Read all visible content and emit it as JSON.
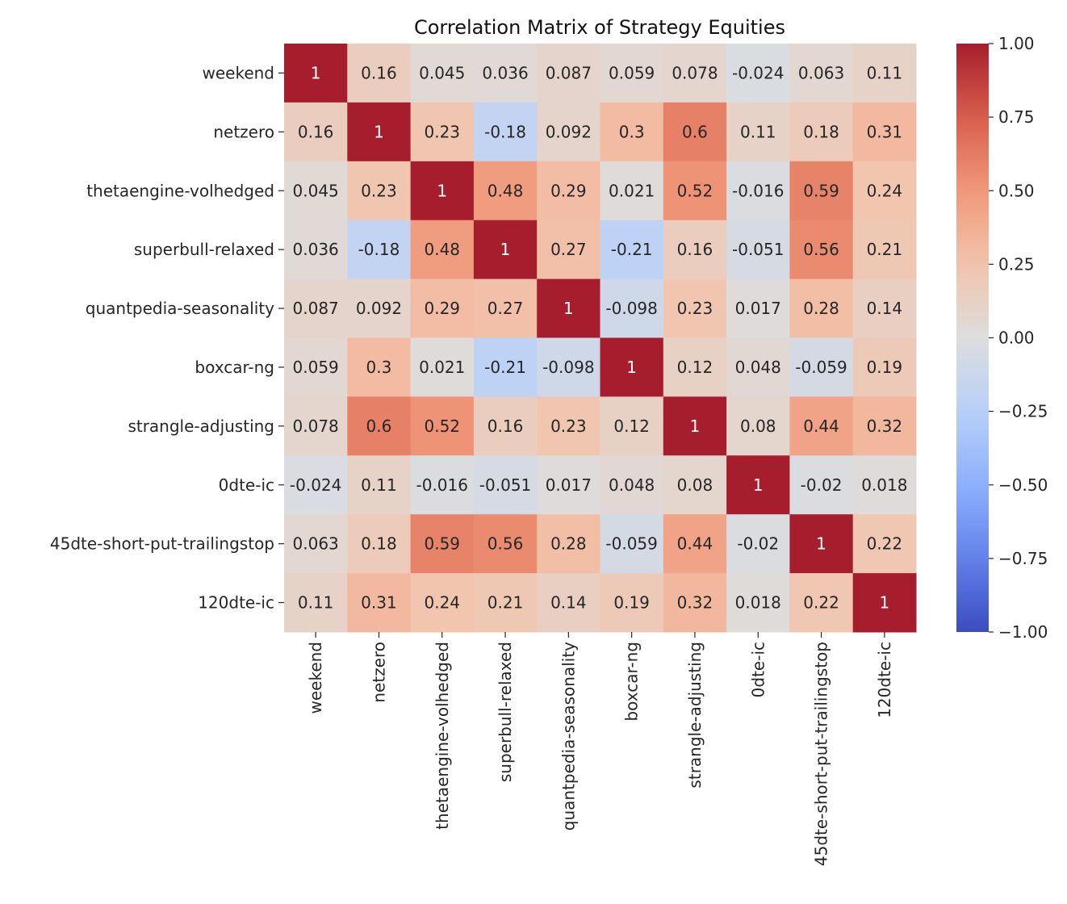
{
  "chart_data": {
    "type": "heatmap",
    "title": "Correlation Matrix of Strategy Equities",
    "labels": [
      "weekend",
      "netzero",
      "thetaengine-volhedged",
      "superbull-relaxed",
      "quantpedia-seasonality",
      "boxcar-ng",
      "strangle-adjusting",
      "0dte-ic",
      "45dte-short-put-trailingstop",
      "120dte-ic"
    ],
    "values": [
      [
        1,
        0.16,
        0.045,
        0.036,
        0.087,
        0.059,
        0.078,
        -0.024,
        0.063,
        0.11
      ],
      [
        0.16,
        1,
        0.23,
        -0.18,
        0.092,
        0.3,
        0.6,
        0.11,
        0.18,
        0.31
      ],
      [
        0.045,
        0.23,
        1,
        0.48,
        0.29,
        0.021,
        0.52,
        -0.016,
        0.59,
        0.24
      ],
      [
        0.036,
        -0.18,
        0.48,
        1,
        0.27,
        -0.21,
        0.16,
        -0.051,
        0.56,
        0.21
      ],
      [
        0.087,
        0.092,
        0.29,
        0.27,
        1,
        -0.098,
        0.23,
        0.017,
        0.28,
        0.14
      ],
      [
        0.059,
        0.3,
        0.021,
        -0.21,
        -0.098,
        1,
        0.12,
        0.048,
        -0.059,
        0.19
      ],
      [
        0.078,
        0.6,
        0.52,
        0.16,
        0.23,
        0.12,
        1,
        0.08,
        0.44,
        0.32
      ],
      [
        -0.024,
        0.11,
        -0.016,
        -0.051,
        0.017,
        0.048,
        0.08,
        1,
        -0.02,
        0.018
      ],
      [
        0.063,
        0.18,
        0.59,
        0.56,
        0.28,
        -0.059,
        0.44,
        -0.02,
        1,
        0.22
      ],
      [
        0.11,
        0.31,
        0.24,
        0.21,
        0.14,
        0.19,
        0.32,
        0.018,
        0.22,
        1
      ]
    ],
    "annotations": [
      [
        "1",
        "0.16",
        "0.045",
        "0.036",
        "0.087",
        "0.059",
        "0.078",
        "-0.024",
        "0.063",
        "0.11"
      ],
      [
        "0.16",
        "1",
        "0.23",
        "-0.18",
        "0.092",
        "0.3",
        "0.6",
        "0.11",
        "0.18",
        "0.31"
      ],
      [
        "0.045",
        "0.23",
        "1",
        "0.48",
        "0.29",
        "0.021",
        "0.52",
        "-0.016",
        "0.59",
        "0.24"
      ],
      [
        "0.036",
        "-0.18",
        "0.48",
        "1",
        "0.27",
        "-0.21",
        "0.16",
        "-0.051",
        "0.56",
        "0.21"
      ],
      [
        "0.087",
        "0.092",
        "0.29",
        "0.27",
        "1",
        "-0.098",
        "0.23",
        "0.017",
        "0.28",
        "0.14"
      ],
      [
        "0.059",
        "0.3",
        "0.021",
        "-0.21",
        "-0.098",
        "1",
        "0.12",
        "0.048",
        "-0.059",
        "0.19"
      ],
      [
        "0.078",
        "0.6",
        "0.52",
        "0.16",
        "0.23",
        "0.12",
        "1",
        "0.08",
        "0.44",
        "0.32"
      ],
      [
        "-0.024",
        "0.11",
        "-0.016",
        "-0.051",
        "0.017",
        "0.048",
        "0.08",
        "1",
        "-0.02",
        "0.018"
      ],
      [
        "0.063",
        "0.18",
        "0.59",
        "0.56",
        "0.28",
        "-0.059",
        "0.44",
        "-0.02",
        "1",
        "0.22"
      ],
      [
        "0.11",
        "0.31",
        "0.24",
        "0.21",
        "0.14",
        "0.19",
        "0.32",
        "0.018",
        "0.22",
        "1"
      ]
    ],
    "colormap": "coolwarm",
    "vmin": -1,
    "vmax": 1,
    "colorbar": {
      "ticks": [
        1.0,
        0.75,
        0.5,
        0.25,
        0.0,
        -0.25,
        -0.5,
        -0.75,
        -1.0
      ],
      "tick_labels": [
        "1.00",
        "0.75",
        "0.50",
        "0.25",
        "0.00",
        "−0.25",
        "−0.50",
        "−0.75",
        "−1.00"
      ],
      "placement": "right"
    },
    "colors": {
      "min": "#3b4cc0",
      "mid": "#dddddd",
      "max": "#a61e2c"
    }
  }
}
